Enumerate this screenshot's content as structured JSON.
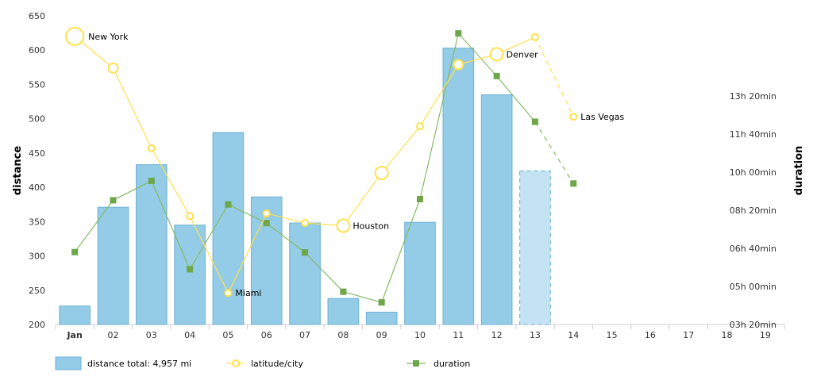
{
  "chart_data": {
    "type": "bar",
    "categories": [
      "Jan",
      "02",
      "03",
      "04",
      "05",
      "06",
      "07",
      "08",
      "09",
      "10",
      "11",
      "12",
      "13",
      "14",
      "15",
      "16",
      "17",
      "18",
      "19"
    ],
    "ylabel": "distance",
    "y2label": "duration",
    "ylim": [
      200,
      650
    ],
    "y_ticks": [
      "200",
      "250",
      "300",
      "350",
      "400",
      "450",
      "500",
      "550",
      "600",
      "650"
    ],
    "y2_ticks": [
      "03h 20min",
      "05h 00min",
      "06h 40min",
      "08h 20min",
      "10h 00min",
      "11h 40min",
      "13h 20min"
    ],
    "y2_tick_minutes": [
      200,
      300,
      400,
      500,
      600,
      700,
      800
    ],
    "y2lim_minutes": [
      200,
      1010
    ],
    "series": [
      {
        "name": "distance",
        "type": "bar",
        "color": "#94cbe6",
        "values": [
          227,
          371,
          433,
          345,
          480,
          386,
          348,
          238,
          218,
          349,
          603,
          535,
          424,
          null,
          null,
          null,
          null,
          null,
          null
        ],
        "dashed_from_index": 12
      },
      {
        "name": "latitude/city",
        "type": "line",
        "color": "#ffe14a",
        "values": [
          620,
          574,
          457,
          358,
          246,
          362,
          348,
          344,
          421,
          489,
          579,
          594,
          619,
          503,
          null,
          null,
          null,
          null,
          null
        ],
        "dashed_from_index": 12,
        "city_labels": [
          {
            "index": 0,
            "text": "New York"
          },
          {
            "index": 4,
            "text": "Miami"
          },
          {
            "index": 7,
            "text": "Houston"
          },
          {
            "index": 11,
            "text": "Denver"
          },
          {
            "index": 13,
            "text": "Las Vegas"
          }
        ],
        "big_marker_indices": [
          0,
          7,
          8,
          11
        ]
      },
      {
        "name": "duration",
        "type": "line",
        "color": "#86bb66",
        "marker_color": "#6da74a",
        "values_minutes": [
          390,
          526,
          577,
          345,
          515,
          466,
          389,
          286,
          258,
          529,
          964,
          852,
          732,
          570,
          null,
          null,
          null,
          null,
          null
        ],
        "dashed_from_index": 12
      }
    ],
    "legend": {
      "placement": "bottom-left",
      "items": [
        {
          "label": "distance total: 4,957 mi",
          "marker": "bar"
        },
        {
          "label": "latitude/city",
          "marker": "circle"
        },
        {
          "label": "duration",
          "marker": "square"
        }
      ]
    }
  }
}
